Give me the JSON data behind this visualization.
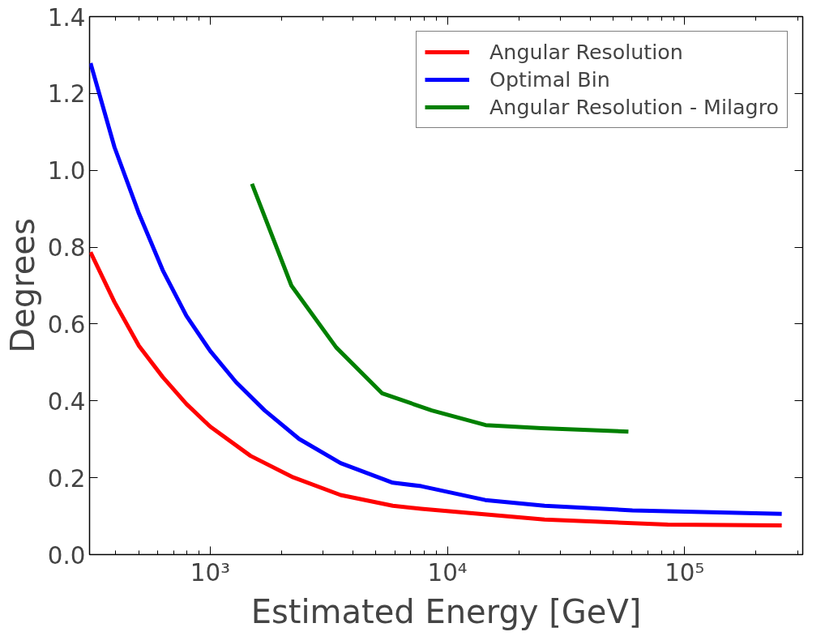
{
  "chart_data": {
    "type": "line",
    "xlabel": "Estimated Energy [GeV]",
    "ylabel": "Degrees",
    "log": "x",
    "grid": false,
    "legend": "top right",
    "line_style": "solid",
    "marker": "none",
    "xlim": [
      310,
      315000
    ],
    "ylim": [
      0,
      1.4
    ],
    "xticks": [
      {
        "value": 1000,
        "label": "10³"
      },
      {
        "value": 10000,
        "label": "10⁴"
      },
      {
        "value": 100000,
        "label": "10⁵"
      }
    ],
    "yticks": [
      {
        "value": 0,
        "label": "0.0"
      },
      {
        "value": 0.2,
        "label": "0.2"
      },
      {
        "value": 0.4,
        "label": "0.4"
      },
      {
        "value": 0.6,
        "label": "0.6"
      },
      {
        "value": 0.8,
        "label": "0.8"
      },
      {
        "value": 1.0,
        "label": "1.0"
      },
      {
        "value": 1.2,
        "label": "1.2"
      },
      {
        "value": 1.4,
        "label": "1.4"
      }
    ],
    "series": [
      {
        "name": "Angular Resolution",
        "color": "#ff0000",
        "x": [
          313,
          395,
          501,
          631,
          794,
          1000,
          1479,
          2239,
          3548,
          5888,
          7762,
          25700,
          85100,
          257000
        ],
        "values": [
          0.787,
          0.657,
          0.543,
          0.462,
          0.392,
          0.333,
          0.257,
          0.201,
          0.155,
          0.127,
          0.119,
          0.091,
          0.078,
          0.076
        ]
      },
      {
        "name": "Optimal Bin",
        "color": "#0000ff",
        "x": [
          313,
          395,
          501,
          631,
          794,
          1000,
          1288,
          1698,
          2371,
          3548,
          5888,
          7762,
          14450,
          25700,
          60300,
          257000
        ],
        "values": [
          1.279,
          1.06,
          0.887,
          0.74,
          0.621,
          0.53,
          0.448,
          0.375,
          0.301,
          0.238,
          0.187,
          0.178,
          0.142,
          0.127,
          0.115,
          0.106
        ]
      },
      {
        "name": "Angular Resolution - Milagro",
        "color": "#008000",
        "x": [
          1500,
          2200,
          3400,
          5300,
          8600,
          14500,
          25000,
          58000
        ],
        "values": [
          0.965,
          0.7,
          0.539,
          0.42,
          0.375,
          0.337,
          0.329,
          0.32
        ]
      }
    ]
  }
}
